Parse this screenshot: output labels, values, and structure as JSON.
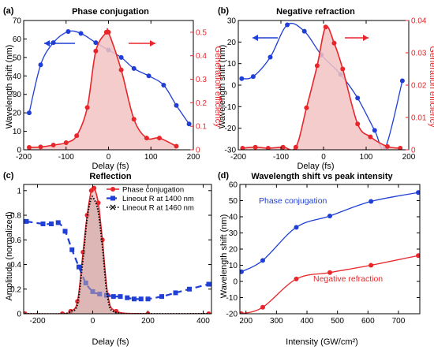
{
  "colors": {
    "blue": "#1f3fd6",
    "red": "#e8262b",
    "fill": "#f3c3c3",
    "fill_dark": "#c8a6a4"
  },
  "chart_data": [
    {
      "panel": "(a)",
      "type": "line",
      "title": "Phase conjugation",
      "xlabel": "Delay (fs)",
      "ylabel": "Wavelength shift (nm)",
      "y2label": "Generation efficiency",
      "xlim": [
        -200,
        200
      ],
      "ylim": [
        0,
        70
      ],
      "y2lim": [
        0,
        0.55
      ],
      "xticks": [
        "-200",
        "-100",
        "0",
        "100",
        "200"
      ],
      "yticks": [
        "0",
        "10",
        "20",
        "30",
        "40",
        "50",
        "60",
        "70"
      ],
      "y2ticks": [
        "0",
        "0.1",
        "0.2",
        "0.3",
        "0.4",
        "0.5"
      ],
      "series": [
        {
          "axis": "left",
          "color": "blue",
          "style": "line-dots",
          "x": [
            -187,
            -160,
            -130,
            -95,
            -65,
            -30,
            0,
            30,
            60,
            95,
            130,
            160,
            190
          ],
          "y": [
            20,
            46,
            58,
            64,
            63,
            58,
            54,
            50,
            44,
            40,
            35,
            24,
            14
          ]
        },
        {
          "axis": "right",
          "color": "red",
          "style": "line-dots-filled",
          "x": [
            -187,
            -160,
            -130,
            -100,
            -75,
            -50,
            -30,
            -5,
            0,
            30,
            60,
            90,
            120,
            160
          ],
          "y": [
            0.01,
            0.012,
            0.02,
            0.03,
            0.06,
            0.18,
            0.42,
            0.5,
            0.5,
            0.34,
            0.13,
            0.05,
            0.05,
            0.015
          ]
        }
      ]
    },
    {
      "panel": "(b)",
      "type": "line",
      "title": "Negative refraction",
      "xlabel": "Delay (fs)",
      "ylabel": "Wavelength shift (nm)",
      "y2label": "Generation efficiency",
      "xlim": [
        -200,
        200
      ],
      "ylim": [
        -30,
        30
      ],
      "y2lim": [
        0,
        0.04
      ],
      "xticks": [
        "-200",
        "-100",
        "0",
        "100",
        "200"
      ],
      "yticks": [
        "-30",
        "-20",
        "-10",
        "0",
        "10",
        "20",
        "30"
      ],
      "y2ticks": [
        "0",
        "0.01",
        "0.02",
        "0.03",
        "0.04"
      ],
      "series": [
        {
          "axis": "left",
          "color": "blue",
          "style": "line-dots",
          "x": [
            -192,
            -165,
            -125,
            -85,
            -45,
            -5,
            40,
            80,
            120,
            145,
            185
          ],
          "y": [
            3,
            4,
            13,
            28,
            25,
            14,
            5,
            -6,
            -21,
            -29,
            2
          ]
        },
        {
          "axis": "right",
          "color": "red",
          "style": "line-dots-filled",
          "x": [
            -190,
            -160,
            -130,
            -95,
            -65,
            -40,
            -15,
            5,
            25,
            45,
            80,
            110,
            150,
            180
          ],
          "y": [
            0.0005,
            0.0008,
            0.0005,
            0.0008,
            0.0008,
            0.013,
            0.026,
            0.038,
            0.033,
            0.025,
            0.008,
            0.004,
            0.001,
            0.0005
          ]
        }
      ]
    },
    {
      "panel": "(c)",
      "type": "line",
      "title": "Reflection",
      "xlabel": "Delay (fs)",
      "ylabel": "Amplitude (normalized)",
      "xlim": [
        -250,
        430
      ],
      "ylim": [
        0,
        1.05
      ],
      "xticks": [
        "-200",
        "0",
        "200",
        "400"
      ],
      "yticks": [
        "0",
        "0.2",
        "0.4",
        "0.6",
        "0.8",
        "1"
      ],
      "legend": [
        "Phase conjugation",
        "Lineout R at 1400 nm",
        "Lineout R at 1460 nm"
      ],
      "legend_position": "top-right",
      "series": [
        {
          "name": "Phase conjugation",
          "color": "red",
          "style": "line-dots-filled",
          "x": [
            -245,
            -110,
            -80,
            -55,
            -35,
            -20,
            -5,
            5,
            20,
            35,
            55,
            85,
            200,
            420
          ],
          "y": [
            0,
            0,
            0.02,
            0.1,
            0.5,
            0.8,
            1.0,
            1.02,
            0.9,
            0.6,
            0.15,
            0.02,
            0,
            0
          ]
        },
        {
          "name": "Lineout R at 1400 nm",
          "color": "blue",
          "style": "dashed-squares",
          "x": [
            -240,
            -180,
            -150,
            -125,
            -100,
            -75,
            -50,
            -25,
            0,
            25,
            50,
            75,
            100,
            125,
            150,
            175,
            200,
            250,
            300,
            350,
            420
          ],
          "y": [
            0.75,
            0.73,
            0.73,
            0.74,
            0.67,
            0.52,
            0.38,
            0.25,
            0.18,
            0.16,
            0.15,
            0.14,
            0.14,
            0.13,
            0.12,
            0.12,
            0.12,
            0.14,
            0.17,
            0.2,
            0.24
          ]
        },
        {
          "name": "Lineout R at 1460 nm",
          "color": "black",
          "style": "dotted",
          "x": [
            -245,
            -110,
            -80,
            -55,
            -35,
            -20,
            -5,
            5,
            20,
            35,
            55,
            85,
            200,
            420
          ],
          "y": [
            0,
            0,
            0.02,
            0.08,
            0.45,
            0.78,
            0.94,
            0.93,
            0.83,
            0.55,
            0.12,
            0.01,
            0,
            0
          ]
        }
      ]
    },
    {
      "panel": "(d)",
      "type": "line",
      "title": "Wavelength shift vs peak intensity",
      "xlabel": "Intensity (GW/cm²)",
      "ylabel": "Wavelength shift (nm)",
      "xlim": [
        180,
        770
      ],
      "ylim": [
        -20,
        60
      ],
      "xticks": [
        "200",
        "300",
        "400",
        "500",
        "600",
        "700"
      ],
      "yticks": [
        "-20",
        "-10",
        "0",
        "10",
        "20",
        "30",
        "40",
        "50",
        "60"
      ],
      "annotations": [
        "Phase conjugation",
        "Negative refraction"
      ],
      "series": [
        {
          "name": "Phase conjugation",
          "color": "blue",
          "style": "line-dots",
          "x": [
            185,
            255,
            365,
            475,
            610,
            765
          ],
          "y": [
            6,
            13,
            33.5,
            40.5,
            49.5,
            55
          ]
        },
        {
          "name": "Negative refraction",
          "color": "red",
          "style": "line-dots",
          "x": [
            185,
            255,
            365,
            475,
            610,
            765
          ],
          "y": [
            -20,
            -16,
            1.5,
            5.5,
            10,
            16
          ]
        }
      ]
    }
  ]
}
